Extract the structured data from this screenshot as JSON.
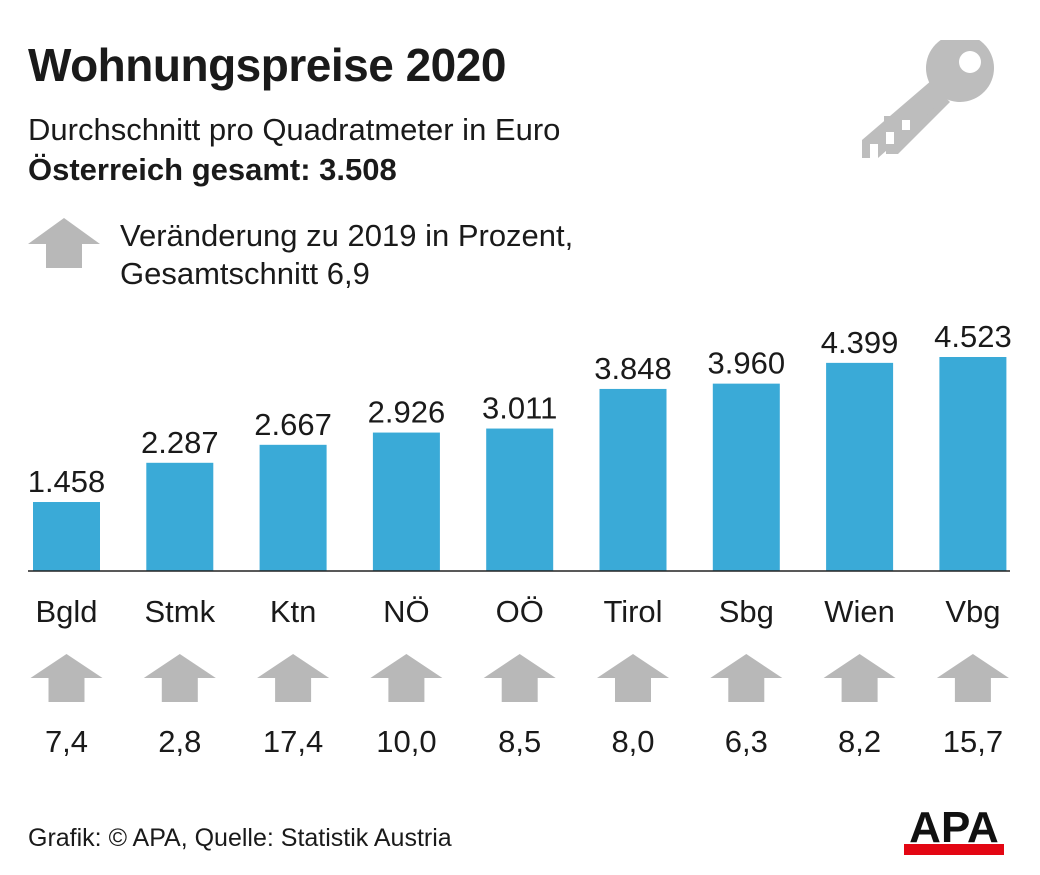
{
  "header": {
    "title": "Wohnungspreise 2020",
    "subtitle": "Durchschnitt pro Quadratmeter in Euro",
    "total": "Österreich gesamt: 3.508"
  },
  "legend": {
    "line1": "Veränderung zu 2019 in Prozent,",
    "line2": "Gesamtschnitt 6,9",
    "arrow_icon": "up-arrow-icon"
  },
  "footer": {
    "source": "Grafik: © APA, Quelle: Statistik Austria",
    "logo_text": "APA"
  },
  "colors": {
    "bar": "#3aaad7",
    "arrow": "#b8b8b8",
    "key": "#bdbdbd",
    "logo_red": "#e30613",
    "text": "#1a1a1a"
  },
  "chart_data": {
    "type": "bar",
    "categories": [
      "Bgld",
      "Stmk",
      "Ktn",
      "NÖ",
      "OÖ",
      "Tirol",
      "Sbg",
      "Wien",
      "Vbg"
    ],
    "values": [
      1458,
      2287,
      2667,
      2926,
      3011,
      3848,
      3960,
      4399,
      4523
    ],
    "value_labels": [
      "1.458",
      "2.287",
      "2.667",
      "2.926",
      "3.011",
      "3.848",
      "3.960",
      "4.399",
      "4.523"
    ],
    "change_labels": [
      "7,4",
      "2,8",
      "17,4",
      "10,0",
      "8,5",
      "8,0",
      "6,3",
      "8,2",
      "15,7"
    ],
    "ylim": [
      0,
      4523
    ],
    "grid": false,
    "legend": "top-left"
  }
}
